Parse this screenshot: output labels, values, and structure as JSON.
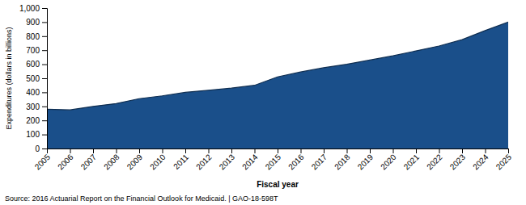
{
  "chart_data": {
    "type": "area",
    "x": [
      2005,
      2006,
      2007,
      2008,
      2009,
      2010,
      2011,
      2012,
      2013,
      2014,
      2015,
      2016,
      2017,
      2018,
      2019,
      2020,
      2021,
      2022,
      2023,
      2024,
      2025
    ],
    "values": [
      280,
      275,
      300,
      320,
      355,
      375,
      400,
      415,
      430,
      450,
      510,
      545,
      575,
      600,
      630,
      660,
      695,
      730,
      775,
      840,
      900
    ],
    "color": "#1a4f8a",
    "xlabel": "Fiscal year",
    "ylabel": "Expenditures (dollars in billions)",
    "annotations": [
      "Source: 2016 Actuarial Report on the Financial Outlook for Medicaid.  |  GAO-18-598T"
    ],
    "xlim": [
      2005,
      2025
    ],
    "xticks": [
      2005,
      2006,
      2007,
      2008,
      2009,
      2010,
      2011,
      2012,
      2013,
      2014,
      2015,
      2016,
      2017,
      2018,
      2019,
      2020,
      2021,
      2022,
      2023,
      2024,
      2025
    ],
    "ylim": [
      0,
      1000
    ],
    "yticks": [
      0,
      100,
      200,
      300,
      400,
      500,
      600,
      700,
      800,
      900,
      {
        "value": 1000,
        "label": "1,000"
      }
    ],
    "grid": false
  }
}
